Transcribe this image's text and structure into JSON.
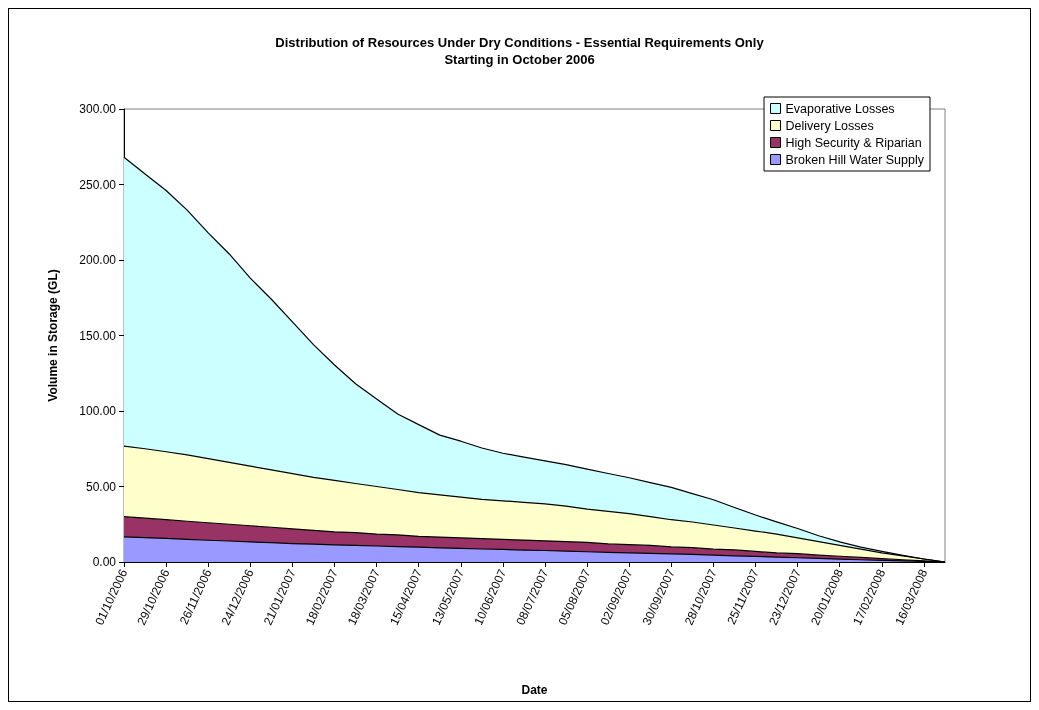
{
  "chart_data": {
    "type": "area",
    "stacked": true,
    "title": "Distribution of Resources Under Dry Conditions - Essential Requirements Only",
    "subtitle": "Starting in October 2006",
    "xlabel": "Date",
    "ylabel": "Volume in Storage (GL)",
    "categories": [
      "01/10/2006",
      null,
      "29/10/2006",
      null,
      "26/11/2006",
      null,
      "24/12/2006",
      null,
      "21/01/2007",
      null,
      "18/02/2007",
      null,
      "18/03/2007",
      null,
      "15/04/2007",
      null,
      "13/05/2007",
      null,
      "10/06/2007",
      null,
      "08/07/2007",
      null,
      "05/08/2007",
      null,
      "02/09/2007",
      null,
      "30/09/2007",
      null,
      "28/10/2007",
      null,
      "25/11/2007",
      null,
      "23/12/2007",
      null,
      "20/01/2008",
      null,
      "17/02/2008",
      null,
      "16/03/2008",
      null
    ],
    "series": [
      {
        "name": "Broken Hill Water Supply",
        "color": "#9999ff",
        "values": [
          16.7,
          16.1,
          15.6,
          15.0,
          14.4,
          13.9,
          13.3,
          12.8,
          12.2,
          11.8,
          11.4,
          11.0,
          10.6,
          10.2,
          9.8,
          9.4,
          9.0,
          8.6,
          8.3,
          7.9,
          7.6,
          7.2,
          6.8,
          6.4,
          6.1,
          5.7,
          5.4,
          5.0,
          4.6,
          4.1,
          3.7,
          3.2,
          2.8,
          2.4,
          1.9,
          1.5,
          1.1,
          0.8,
          0.4,
          0
        ]
      },
      {
        "name": "High Security & Riparian",
        "color": "#993366",
        "values": [
          13.3,
          12.9,
          12.4,
          12.0,
          11.6,
          11.1,
          10.7,
          10.2,
          9.8,
          9.2,
          8.6,
          8.5,
          7.9,
          7.8,
          7.2,
          7.1,
          7.0,
          6.9,
          6.7,
          6.6,
          6.4,
          6.3,
          6.2,
          5.6,
          5.4,
          5.3,
          4.6,
          4.5,
          3.9,
          3.9,
          3.3,
          2.8,
          2.7,
          2.1,
          1.9,
          1.5,
          1.1,
          0.7,
          0.3,
          0
        ]
      },
      {
        "name": "Delivery Losses",
        "color": "#ffffcc",
        "values": [
          46.7,
          46,
          45,
          44,
          42.5,
          41,
          39.5,
          38,
          36.5,
          35,
          34,
          32.5,
          31.5,
          30,
          29,
          28,
          27,
          26,
          25.5,
          25,
          24.5,
          23.5,
          22,
          21.5,
          20.5,
          19,
          18,
          17,
          16,
          14.5,
          13.5,
          12.5,
          10.5,
          9,
          7.2,
          5.5,
          3.8,
          2.5,
          1.3,
          0
        ]
      },
      {
        "name": "Evaporative Losses",
        "color": "#ccffff",
        "values": [
          191.3,
          182,
          173,
          162,
          149.5,
          138,
          124.5,
          113,
          100.5,
          88,
          76.5,
          66,
          58,
          50,
          45,
          39.5,
          37,
          34,
          31.5,
          30,
          28.5,
          27.5,
          26.5,
          25.1,
          23.8,
          22.6,
          21.4,
          18.8,
          16.7,
          13.6,
          10.6,
          8.1,
          6.2,
          3.9,
          2.3,
          1.3,
          1.0,
          0.4,
          0,
          0
        ]
      }
    ],
    "ylim": [
      0,
      300
    ],
    "yticks": [
      {
        "value": 0,
        "label": "0.00"
      },
      {
        "value": 50,
        "label": "50.00"
      },
      {
        "value": 100,
        "label": "100.00"
      },
      {
        "value": 150,
        "label": "150.00"
      },
      {
        "value": 200,
        "label": "200.00"
      },
      {
        "value": 250,
        "label": "250.00"
      },
      {
        "value": 300,
        "label": "300.00"
      }
    ],
    "grid": false,
    "legend": "top right",
    "marker": "none"
  }
}
